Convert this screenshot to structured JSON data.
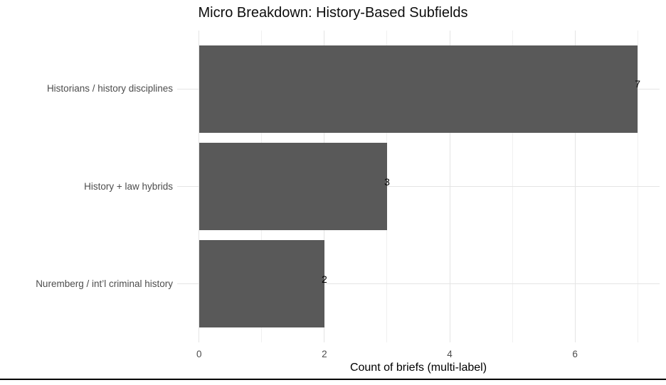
{
  "chart_data": {
    "type": "bar",
    "orientation": "horizontal",
    "title": "Micro Breakdown: History-Based Subfields",
    "xlabel": "Count of briefs (multi-label)",
    "ylabel": "",
    "categories": [
      "Historians / history disciplines",
      "History + law hybrids",
      "Nuremberg / int’l criminal history"
    ],
    "values": [
      7,
      3,
      2
    ],
    "bar_labels": [
      "7",
      "3",
      "2"
    ],
    "x_ticks": [
      0,
      2,
      4,
      6
    ],
    "x_minor_ticks": [
      1,
      3,
      5,
      7
    ],
    "xlim": [
      -0.35,
      7.35
    ],
    "grid": "on",
    "legend": "none",
    "colors": {
      "bar_fill": "#595959",
      "grid_major": "#e4e4e4",
      "grid_minor": "#f0f0f0",
      "axis_text": "#4d4d4d",
      "title_text": "#0d0d0d",
      "bar_label_text": "#000000",
      "bottom_border": "#000000"
    }
  }
}
